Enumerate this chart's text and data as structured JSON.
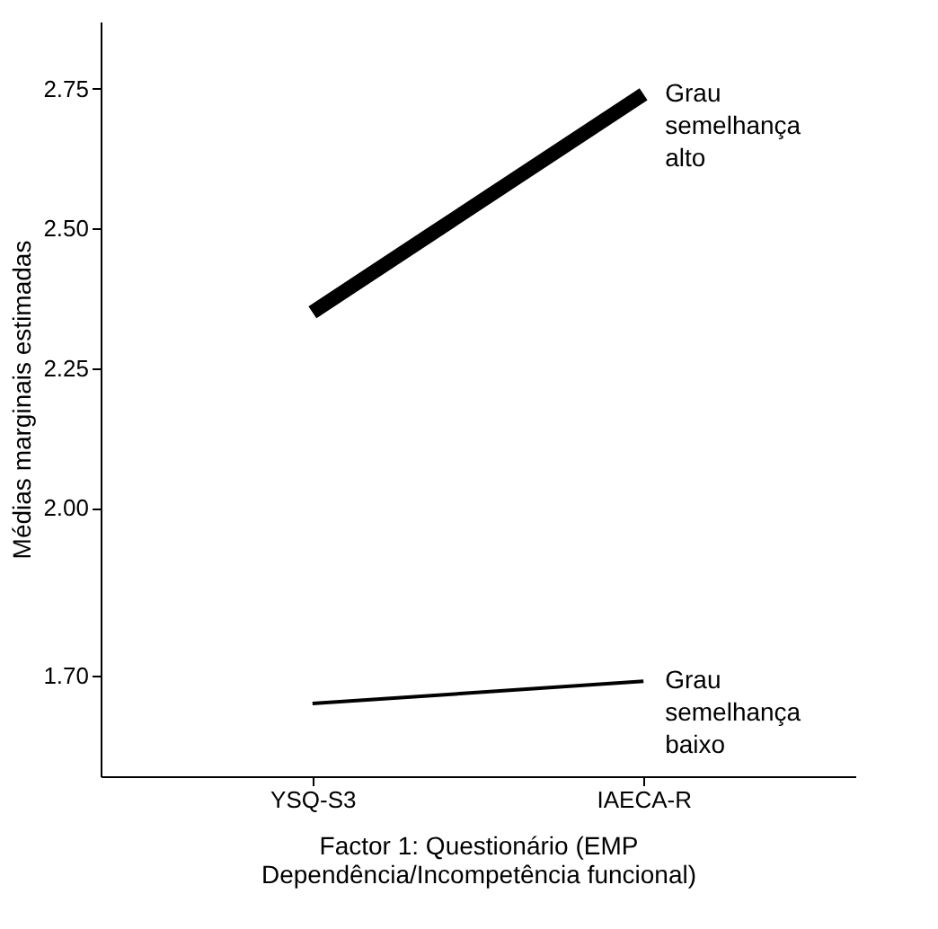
{
  "chart_data": {
    "type": "line",
    "xlabel": "Factor 1: Questionário (EMP Dependência/Incompetência funcional)",
    "ylabel": "Médias marginais estimadas",
    "categories": [
      "YSQ-S3",
      "IAECA-R"
    ],
    "series": [
      {
        "name": "Grau semelhança alto",
        "color": "#000000",
        "values": [
          2.35,
          2.74
        ]
      },
      {
        "name": "Grau semelhança baixo",
        "color": "#000000",
        "values": [
          1.65,
          1.69
        ]
      }
    ],
    "ylim": [
      1.52,
      2.87
    ],
    "yticks": [
      {
        "value": 1.7,
        "label": "1.70"
      },
      {
        "value": 2.0,
        "label": "2.00"
      },
      2.25,
      {
        "value": 2.5,
        "label": "2.50"
      },
      2.75
    ],
    "grid": false,
    "marker": "none",
    "line_style": "solid"
  }
}
